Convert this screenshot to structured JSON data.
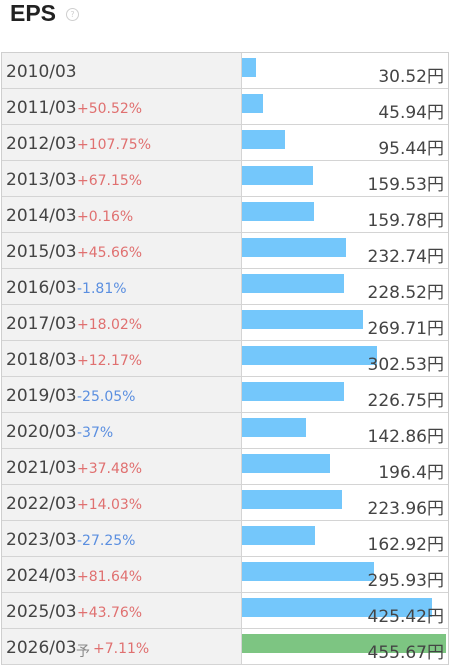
{
  "header": {
    "title": "EPS",
    "help_icon": "?"
  },
  "colors": {
    "bar": "#74c7fb",
    "forecast_bar": "#7dc582",
    "up": "#e07070",
    "down": "#5b8fe0"
  },
  "chart_data": {
    "type": "bar",
    "title": "EPS",
    "xlabel": "",
    "ylabel": "",
    "xlim": [
      0,
      455.67
    ],
    "rows": [
      {
        "year": "2010/03",
        "forecast": "",
        "yoy": "",
        "dir": "",
        "value": 30.52,
        "value_label": "30.52円"
      },
      {
        "year": "2011/03",
        "forecast": "",
        "yoy": "+50.52%",
        "dir": "up",
        "value": 45.94,
        "value_label": "45.94円"
      },
      {
        "year": "2012/03",
        "forecast": "",
        "yoy": "+107.75%",
        "dir": "up",
        "value": 95.44,
        "value_label": "95.44円"
      },
      {
        "year": "2013/03",
        "forecast": "",
        "yoy": "+67.15%",
        "dir": "up",
        "value": 159.53,
        "value_label": "159.53円"
      },
      {
        "year": "2014/03",
        "forecast": "",
        "yoy": "+0.16%",
        "dir": "up",
        "value": 159.78,
        "value_label": "159.78円"
      },
      {
        "year": "2015/03",
        "forecast": "",
        "yoy": "+45.66%",
        "dir": "up",
        "value": 232.74,
        "value_label": "232.74円"
      },
      {
        "year": "2016/03",
        "forecast": "",
        "yoy": "-1.81%",
        "dir": "down",
        "value": 228.52,
        "value_label": "228.52円"
      },
      {
        "year": "2017/03",
        "forecast": "",
        "yoy": "+18.02%",
        "dir": "up",
        "value": 269.71,
        "value_label": "269.71円"
      },
      {
        "year": "2018/03",
        "forecast": "",
        "yoy": "+12.17%",
        "dir": "up",
        "value": 302.53,
        "value_label": "302.53円"
      },
      {
        "year": "2019/03",
        "forecast": "",
        "yoy": "-25.05%",
        "dir": "down",
        "value": 226.75,
        "value_label": "226.75円"
      },
      {
        "year": "2020/03",
        "forecast": "",
        "yoy": "-37%",
        "dir": "down",
        "value": 142.86,
        "value_label": "142.86円"
      },
      {
        "year": "2021/03",
        "forecast": "",
        "yoy": "+37.48%",
        "dir": "up",
        "value": 196.4,
        "value_label": "196.4円"
      },
      {
        "year": "2022/03",
        "forecast": "",
        "yoy": "+14.03%",
        "dir": "up",
        "value": 223.96,
        "value_label": "223.96円"
      },
      {
        "year": "2023/03",
        "forecast": "",
        "yoy": "-27.25%",
        "dir": "down",
        "value": 162.92,
        "value_label": "162.92円"
      },
      {
        "year": "2024/03",
        "forecast": "",
        "yoy": "+81.64%",
        "dir": "up",
        "value": 295.93,
        "value_label": "295.93円"
      },
      {
        "year": "2025/03",
        "forecast": "",
        "yoy": "+43.76%",
        "dir": "up",
        "value": 425.42,
        "value_label": "425.42円"
      },
      {
        "year": "2026/03",
        "forecast": "予",
        "yoy": "+7.11%",
        "dir": "up",
        "value": 455.67,
        "value_label": "455.67円"
      }
    ]
  }
}
